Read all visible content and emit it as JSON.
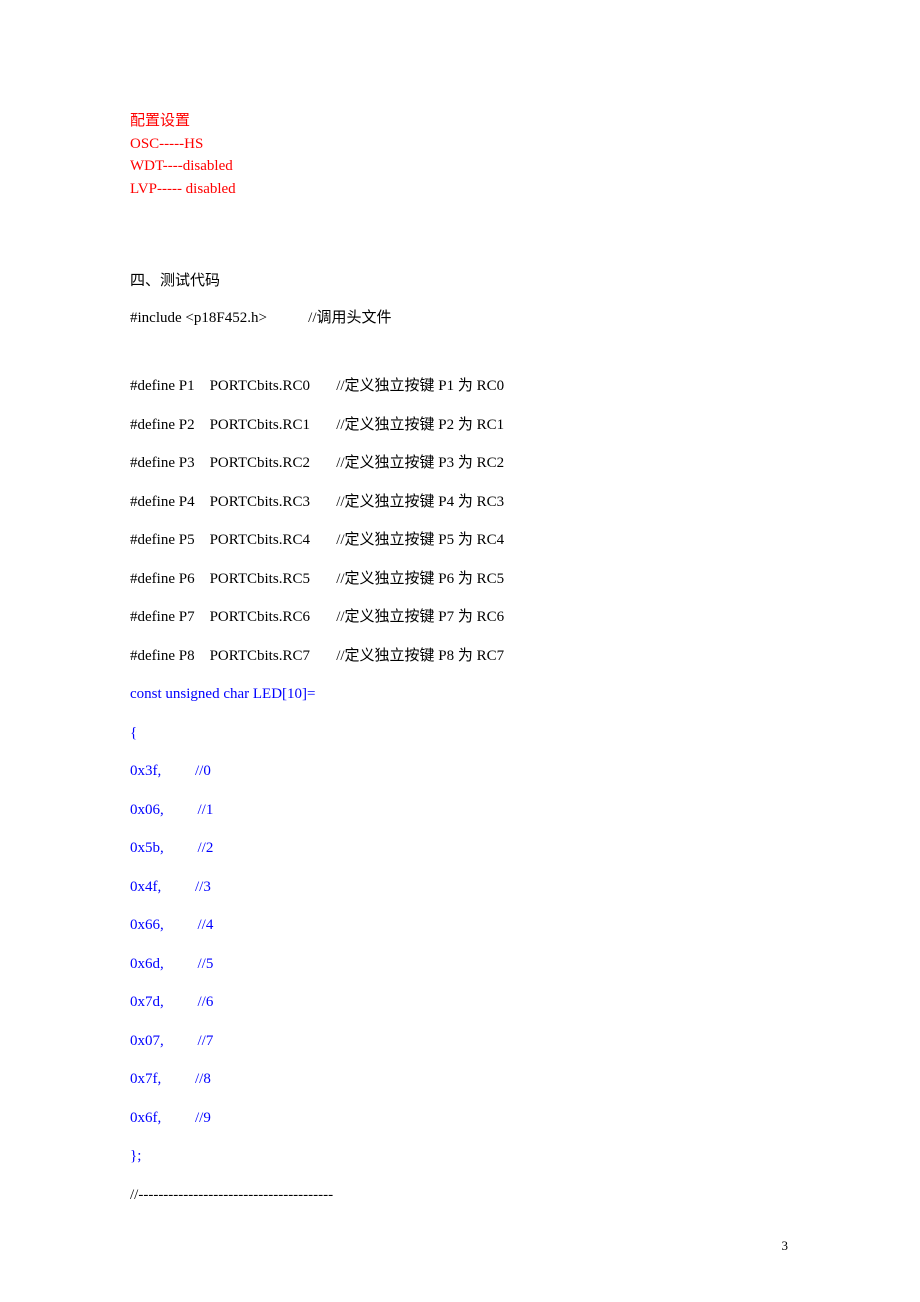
{
  "config": {
    "title": "配置设置",
    "osc": "OSC-----HS",
    "wdt": "WDT----disabled",
    "lvp": "LVP----- disabled"
  },
  "section_heading": "四、测试代码",
  "include_line": "#include <p18F452.h>           //调用头文件",
  "defines": [
    "#define P1    PORTCbits.RC0       //定义独立按键 P1 为 RC0",
    "#define P2    PORTCbits.RC1       //定义独立按键 P2 为 RC1",
    "#define P3    PORTCbits.RC2       //定义独立按键 P3 为 RC2",
    "#define P4    PORTCbits.RC3       //定义独立按键 P4 为 RC3",
    "#define P5    PORTCbits.RC4       //定义独立按键 P5 为 RC4",
    "#define P6    PORTCbits.RC5       //定义独立按键 P6 为 RC5",
    "#define P7    PORTCbits.RC6       //定义独立按键 P7 为 RC6",
    "#define P8    PORTCbits.RC7       //定义独立按键 P8 为 RC7"
  ],
  "array_decl": "const unsigned char LED[10]=",
  "brace_open": "{",
  "array_items": [
    "0x3f,         //0",
    "0x06,         //1",
    "0x5b,         //2",
    "0x4f,         //3",
    "0x66,         //4",
    "0x6d,         //5",
    "0x7d,         //6",
    "0x07,         //7",
    "0x7f,         //8",
    "0x6f,         //9"
  ],
  "brace_close": "};",
  "divider": "//---------------------------------------",
  "page_number": "3",
  "colors": {
    "red": "#ff0000",
    "black": "#000000",
    "blue": "#0000ff",
    "background": "#ffffff"
  },
  "typography": {
    "body_fontsize": 15,
    "page_number_fontsize": 13,
    "font_family": "Times New Roman / SimSun"
  }
}
